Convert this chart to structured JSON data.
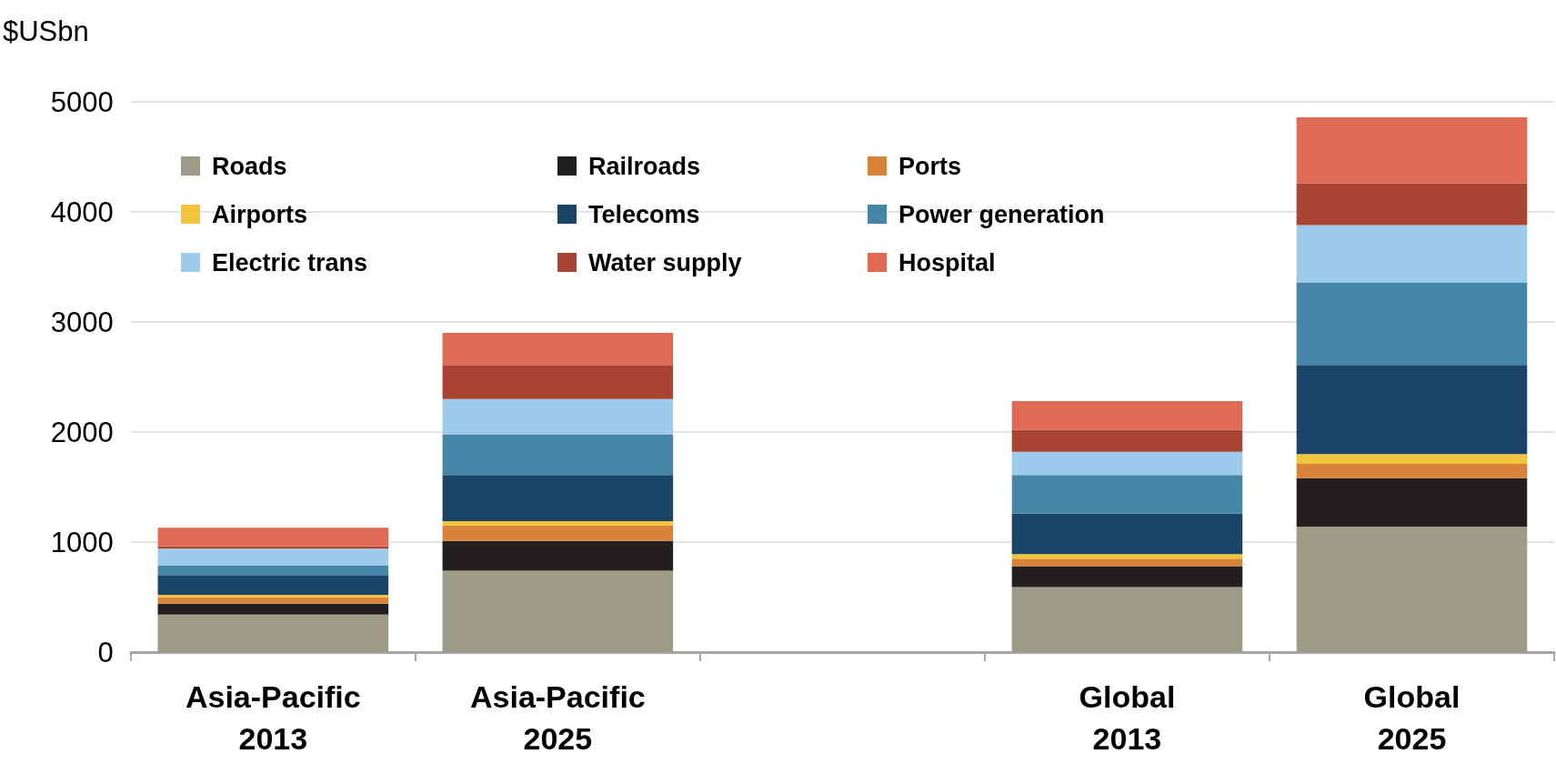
{
  "chart_data": {
    "type": "bar",
    "ylabel": "$USbn",
    "categories": [
      "Asia-Pacific 2013",
      "Asia-Pacific 2025",
      null,
      "Global 2013",
      "Global 2025"
    ],
    "series": [
      {
        "name": "Roads",
        "color": "#9d9a85",
        "values": [
          340,
          740,
          null,
          590,
          1140
        ]
      },
      {
        "name": "Railroads",
        "color": "#231f1e",
        "values": [
          100,
          270,
          null,
          190,
          440
        ]
      },
      {
        "name": "Ports",
        "color": "#d9823a",
        "values": [
          60,
          140,
          null,
          70,
          130
        ]
      },
      {
        "name": "Airports",
        "color": "#f2c43c",
        "values": [
          20,
          40,
          null,
          40,
          90
        ]
      },
      {
        "name": "Telecoms",
        "color": "#1b4568",
        "values": [
          180,
          420,
          null,
          370,
          810
        ]
      },
      {
        "name": "Power generation",
        "color": "#4586a8",
        "values": [
          90,
          370,
          null,
          350,
          750
        ]
      },
      {
        "name": "Electric trans",
        "color": "#9ccbeb",
        "values": [
          150,
          320,
          null,
          210,
          520
        ]
      },
      {
        "name": "Water supply",
        "color": "#a84431",
        "values": [
          20,
          310,
          null,
          200,
          380
        ]
      },
      {
        "name": "Hospital",
        "color": "#e06a54",
        "values": [
          170,
          290,
          null,
          260,
          600
        ]
      }
    ],
    "stacked": true,
    "ylim": [
      0,
      5000
    ],
    "yticks": [
      0,
      1000,
      2000,
      3000,
      4000,
      5000
    ],
    "grid": "y",
    "legend": "top left"
  }
}
